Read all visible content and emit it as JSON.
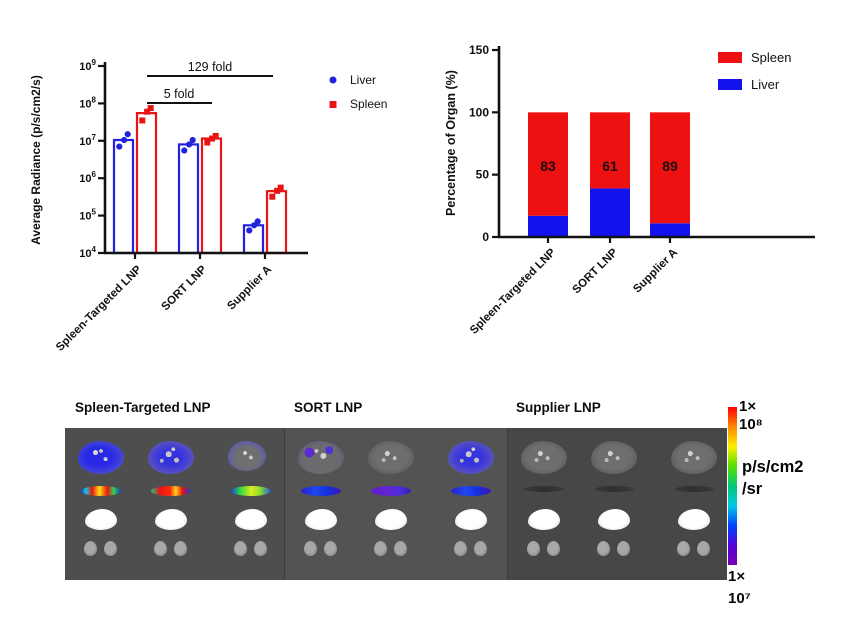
{
  "colors": {
    "liver_blue": "#2222dd",
    "spleen_red": "#e81414",
    "axis_black": "#111111",
    "stack_blue": "#1212ee",
    "stack_red": "#ee1111"
  },
  "chart_data": [
    {
      "type": "bar",
      "title": "",
      "ylabel": "Average Radiance (p/s/cm2/s)",
      "xlabel": "",
      "scale": "log10",
      "ylim_exp": [
        4,
        9
      ],
      "ytick_exponents": [
        4,
        5,
        6,
        7,
        8,
        9
      ],
      "categories": [
        "Spleen-Targeted LNP",
        "SORT LNP",
        "Supplier A"
      ],
      "series": [
        {
          "name": "Liver",
          "marker": "circle",
          "color": "#2222dd",
          "values": [
            10500000.0,
            8000000.0,
            55000.0
          ],
          "points": [
            [
              7000000.0,
              10500000.0,
              15000000.0
            ],
            [
              5500000.0,
              8000000.0,
              10500000.0
            ],
            [
              40000.0,
              55000.0,
              70000.0
            ]
          ]
        },
        {
          "name": "Spleen",
          "marker": "square",
          "color": "#e81414",
          "values": [
            55000000.0,
            11500000.0,
            450000.0
          ],
          "points": [
            [
              35000000.0,
              60000000.0,
              75000000.0
            ],
            [
              9000000.0,
              11500000.0,
              13500000.0
            ],
            [
              320000.0,
              460000.0,
              560000.0
            ]
          ]
        }
      ],
      "annotations": [
        "129 fold",
        "5 fold"
      ],
      "legend_position": "right"
    },
    {
      "type": "bar",
      "subtype": "stacked",
      "title": "",
      "ylabel": "Percentage of Organ (%)",
      "xlabel": "",
      "ylim": [
        0,
        150
      ],
      "yticks": [
        0,
        50,
        100,
        150
      ],
      "categories": [
        "Spleen-Targeted LNP",
        "SORT LNP",
        "Supplier A"
      ],
      "series": [
        {
          "name": "Spleen",
          "color": "#ee1111",
          "values": [
            83,
            61,
            89
          ]
        },
        {
          "name": "Liver",
          "color": "#1212ee",
          "values": [
            17,
            39,
            11
          ]
        }
      ],
      "labels_on_bars": [
        "83",
        "61",
        "89"
      ],
      "legend_position": "top-right"
    }
  ],
  "image_panel": {
    "panels": [
      {
        "title": "Spleen-Targeted LNP",
        "mice": [
          {
            "liver": "liver-blue",
            "spleen": "spleen-hot"
          },
          {
            "liver": "liver-blue-speckle",
            "spleen": "spleen-hot2"
          },
          {
            "liver": "liver-blue-light",
            "spleen": "spleen-green"
          }
        ]
      },
      {
        "title": "SORT LNP",
        "mice": [
          {
            "liver": "liver-purple",
            "spleen": "spleen-blue"
          },
          {
            "liver": "liver-gray",
            "spleen": "spleen-purple"
          },
          {
            "liver": "liver-blue-speckle",
            "spleen": "spleen-blue"
          }
        ]
      },
      {
        "title": "Supplier LNP",
        "mice": [
          {
            "liver": "liver-gray",
            "spleen": "spleen-dark"
          },
          {
            "liver": "liver-gray",
            "spleen": "spleen-dark"
          },
          {
            "liver": "liver-gray",
            "spleen": "spleen-dark"
          }
        ]
      }
    ],
    "colorbar": {
      "top_label": "1×",
      "top_exp": "10⁸",
      "unit_line1": "p/s/cm2",
      "unit_line2": "/sr",
      "bottom_label": "1×",
      "bottom_exp": "10⁷",
      "gradient": [
        "#ff0000",
        "#ff8800",
        "#ffee00",
        "#55e000",
        "#00c878",
        "#00c8e8",
        "#0044ff",
        "#5500d8",
        "#7a00b4"
      ]
    }
  }
}
